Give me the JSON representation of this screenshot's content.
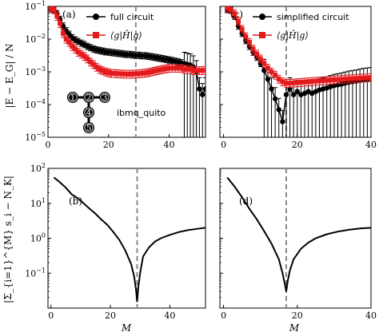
{
  "chart_data": [
    {
      "panel": "(a)",
      "type": "line",
      "xlim": [
        0,
        52
      ],
      "ylim_exp": [
        -5,
        -1
      ],
      "yscale": "log",
      "xticks": [
        0,
        20,
        40
      ],
      "yticks": [
        "10^{-5}",
        "10^{-4}",
        "10^{-3}",
        "10^{-2}",
        "10^{-1}"
      ],
      "ylabel": "|E − E_G| / N",
      "vline_x": 29,
      "legend": [
        "full circuit",
        "⟨g|Ĥ|g⟩"
      ],
      "device_label": "ibmq_quito",
      "device_qubits": [
        "1",
        "2",
        "3",
        "4",
        "5"
      ],
      "series": [
        {
          "name": "full circuit",
          "color": "#000000",
          "x": [
            1,
            2,
            3,
            4,
            5,
            6,
            7,
            8,
            9,
            10,
            11,
            12,
            13,
            14,
            15,
            16,
            17,
            18,
            19,
            20,
            21,
            22,
            23,
            24,
            25,
            26,
            27,
            28,
            29,
            30,
            31,
            32,
            33,
            34,
            35,
            36,
            37,
            38,
            39,
            40,
            41,
            42,
            43,
            44,
            45,
            46,
            47,
            48,
            49,
            50,
            51,
            52
          ],
          "y": [
            0.08,
            0.075,
            0.06,
            0.04,
            0.025,
            0.018,
            0.014,
            0.011,
            0.0095,
            0.0085,
            0.0075,
            0.0068,
            0.006,
            0.0055,
            0.005,
            0.0047,
            0.0045,
            0.0043,
            0.0041,
            0.004,
            0.0039,
            0.0038,
            0.0037,
            0.0036,
            0.0035,
            0.0034,
            0.0034,
            0.0033,
            0.0032,
            0.0032,
            0.0031,
            0.0031,
            0.003,
            0.0029,
            0.0028,
            0.0027,
            0.0026,
            0.0025,
            0.0024,
            0.0023,
            0.0022,
            0.0021,
            0.002,
            0.0019,
            0.0018,
            0.0017,
            0.0016,
            0.0014,
            0.001,
            0.0003,
            0.0002,
            0.0003
          ]
        },
        {
          "name": "⟨g|Ĥ|g⟩",
          "color": "#e41a1c",
          "x": [
            1,
            2,
            3,
            4,
            5,
            6,
            7,
            8,
            9,
            10,
            11,
            12,
            13,
            14,
            15,
            16,
            17,
            18,
            19,
            20,
            21,
            22,
            23,
            24,
            25,
            26,
            27,
            28,
            29,
            30,
            31,
            32,
            33,
            34,
            35,
            36,
            37,
            38,
            39,
            40,
            41,
            42,
            43,
            44,
            45,
            46,
            47,
            48,
            49,
            50,
            51,
            52
          ],
          "y": [
            0.085,
            0.08,
            0.05,
            0.03,
            0.015,
            0.01,
            0.008,
            0.006,
            0.005,
            0.004,
            0.0035,
            0.003,
            0.0025,
            0.002,
            0.0017,
            0.0014,
            0.0012,
            0.0011,
            0.001,
            0.00095,
            0.0009,
            0.0009,
            0.00088,
            0.00087,
            0.00086,
            0.00085,
            0.00085,
            0.00086,
            0.00087,
            0.00088,
            0.0009,
            0.00092,
            0.00095,
            0.001,
            0.00105,
            0.0011,
            0.00115,
            0.0012,
            0.00125,
            0.0013,
            0.0013,
            0.0013,
            0.0013,
            0.0013,
            0.0012,
            0.0012,
            0.0012,
            0.0011,
            0.0011,
            0.0011,
            0.0011,
            0.0011
          ]
        }
      ]
    },
    {
      "panel": "(c)",
      "type": "line",
      "xlim": [
        -1,
        40
      ],
      "ylim_exp": [
        -5,
        -1
      ],
      "yscale": "log",
      "xticks": [
        0,
        20,
        40
      ],
      "vline_x": 17,
      "legend": [
        "simplified circuit",
        "⟨g|Ĥ|g⟩"
      ],
      "series": [
        {
          "name": "simplified circuit",
          "color": "#000000",
          "x": [
            1,
            2,
            3,
            4,
            5,
            6,
            7,
            8,
            9,
            10,
            11,
            12,
            13,
            14,
            15,
            16,
            17,
            18,
            19,
            20,
            21,
            22,
            23,
            24,
            25,
            26,
            27,
            28,
            29,
            30,
            31,
            32,
            33,
            34,
            35,
            36,
            37,
            38,
            39,
            40
          ],
          "y": [
            0.08,
            0.075,
            0.05,
            0.025,
            0.015,
            0.009,
            0.006,
            0.004,
            0.0028,
            0.0018,
            0.0011,
            0.0006,
            0.0003,
            0.00015,
            7e-05,
            3e-05,
            0.0002,
            0.0003,
            0.0002,
            0.00025,
            0.0002,
            0.00022,
            0.00025,
            0.00022,
            0.00025,
            0.00028,
            0.0003,
            0.00032,
            0.00035,
            0.00038,
            0.0004,
            0.00042,
            0.00045,
            0.00048,
            0.0005,
            0.00052,
            0.00055,
            0.00058,
            0.0006,
            0.00062
          ]
        },
        {
          "name": "⟨g|Ĥ|g⟩",
          "color": "#e41a1c",
          "x": [
            1,
            2,
            3,
            4,
            5,
            6,
            7,
            8,
            9,
            10,
            11,
            12,
            13,
            14,
            15,
            16,
            17,
            18,
            19,
            20,
            21,
            22,
            23,
            24,
            25,
            26,
            27,
            28,
            29,
            30,
            31,
            32,
            33,
            34,
            35,
            36,
            37,
            38,
            39,
            40
          ],
          "y": [
            0.09,
            0.08,
            0.06,
            0.035,
            0.02,
            0.012,
            0.008,
            0.005,
            0.0035,
            0.0025,
            0.0018,
            0.0013,
            0.001,
            0.0008,
            0.0006,
            0.0005,
            0.00045,
            0.00045,
            0.00046,
            0.00047,
            0.00048,
            0.00049,
            0.0005,
            0.00051,
            0.00052,
            0.00053,
            0.00054,
            0.00055,
            0.00056,
            0.00057,
            0.00058,
            0.00059,
            0.0006,
            0.00061,
            0.00062,
            0.00063,
            0.00064,
            0.00065,
            0.00066,
            0.00067
          ]
        }
      ]
    },
    {
      "panel": "(b)",
      "type": "line",
      "xlim": [
        -1,
        52
      ],
      "ylim_exp": [
        -2,
        2
      ],
      "yscale": "log",
      "xticks": [
        0,
        20,
        40
      ],
      "yticks": [
        "10^{-1}",
        "10^{0}",
        "10^{1}",
        "10^{2}"
      ],
      "ylabel": "|Σ_{i=1}^{M} s_i − N_K|",
      "xlabel": "M",
      "vline_x": 29,
      "series": [
        {
          "name": "",
          "color": "#000000",
          "x": [
            1,
            3,
            5,
            7,
            9,
            11,
            13,
            15,
            17,
            19,
            21,
            23,
            25,
            27,
            28,
            28.6,
            29,
            29.4,
            30,
            31,
            33,
            35,
            37,
            40,
            43,
            46,
            49,
            52
          ],
          "y": [
            55,
            40,
            28,
            18,
            14,
            10,
            7,
            5,
            3.4,
            2.4,
            1.5,
            0.9,
            0.45,
            0.18,
            0.08,
            0.035,
            0.015,
            0.04,
            0.1,
            0.3,
            0.55,
            0.8,
            1.0,
            1.25,
            1.5,
            1.7,
            1.85,
            2.0
          ]
        }
      ]
    },
    {
      "panel": "(d)",
      "type": "line",
      "xlim": [
        -1,
        40
      ],
      "ylim_exp": [
        -2,
        2
      ],
      "yscale": "log",
      "xticks": [
        0,
        20,
        40
      ],
      "xlabel": "M",
      "vline_x": 17,
      "series": [
        {
          "name": "",
          "color": "#000000",
          "x": [
            1,
            3,
            5,
            7,
            9,
            11,
            13,
            15,
            16,
            16.6,
            17,
            17.4,
            18,
            19,
            21,
            23,
            25,
            28,
            31,
            34,
            37,
            40
          ],
          "y": [
            55,
            30,
            15,
            7,
            3.5,
            1.6,
            0.7,
            0.25,
            0.1,
            0.05,
            0.03,
            0.06,
            0.12,
            0.25,
            0.5,
            0.75,
            1.0,
            1.3,
            1.55,
            1.75,
            1.9,
            2.0
          ]
        }
      ]
    }
  ]
}
